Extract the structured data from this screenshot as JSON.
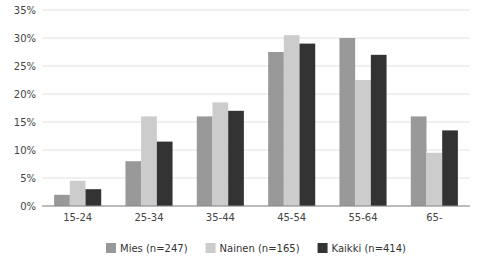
{
  "chart_data": {
    "type": "bar",
    "categories": [
      "15-24",
      "25-34",
      "35-44",
      "45-54",
      "55-64",
      "65-"
    ],
    "series": [
      {
        "name": "Mies (n=247)",
        "color": "#999999",
        "values": [
          2.0,
          8.0,
          16.0,
          27.5,
          30.0,
          16.0
        ]
      },
      {
        "name": "Nainen (n=165)",
        "color": "#cccccc",
        "values": [
          4.5,
          16.0,
          18.5,
          30.5,
          22.5,
          9.5
        ]
      },
      {
        "name": "Kaikki (n=414)",
        "color": "#333333",
        "values": [
          3.0,
          11.5,
          17.0,
          29.0,
          27.0,
          13.5
        ]
      }
    ],
    "ylim": [
      0,
      35
    ],
    "yticks": [
      {
        "value": 0,
        "label": "0%"
      },
      {
        "value": 5,
        "label": "5%"
      },
      {
        "value": 10,
        "label": "10%"
      },
      {
        "value": 15,
        "label": "15%"
      },
      {
        "value": 20,
        "label": "20%"
      },
      {
        "value": 25,
        "label": "25%"
      },
      {
        "value": 30,
        "label": "30%"
      },
      {
        "value": 35,
        "label": "35%"
      }
    ],
    "grid": true,
    "legend": "bottom"
  }
}
